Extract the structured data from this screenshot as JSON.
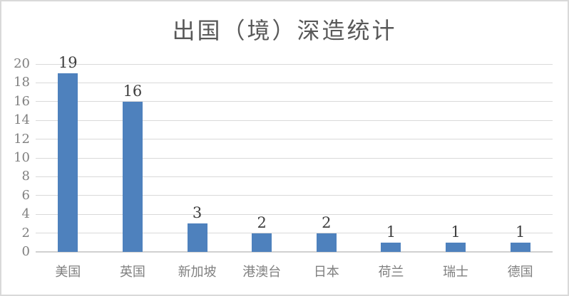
{
  "chart_data": {
    "type": "bar",
    "title": "出国（境）深造统计",
    "categories": [
      "美国",
      "英国",
      "新加坡",
      "港澳台",
      "日本",
      "荷兰",
      "瑞士",
      "德国"
    ],
    "values": [
      19,
      16,
      3,
      2,
      2,
      1,
      1,
      1
    ],
    "xlabel": "",
    "ylabel": "",
    "ylim": [
      0,
      20
    ],
    "y_ticks": [
      0,
      2,
      4,
      6,
      8,
      10,
      12,
      14,
      16,
      18,
      20
    ],
    "grid": "horizontal",
    "legend": "none",
    "data_labels": "above-bars",
    "colors": {
      "bar": "#4e81bd",
      "title_text": "#595959",
      "data_label_text": "#3f3f3f",
      "axis_text": "#808080",
      "gridline": "#d9d9d9",
      "axis_line": "#d0d0d0",
      "frame_border": "#d9d9d9",
      "background": "#ffffff"
    }
  }
}
